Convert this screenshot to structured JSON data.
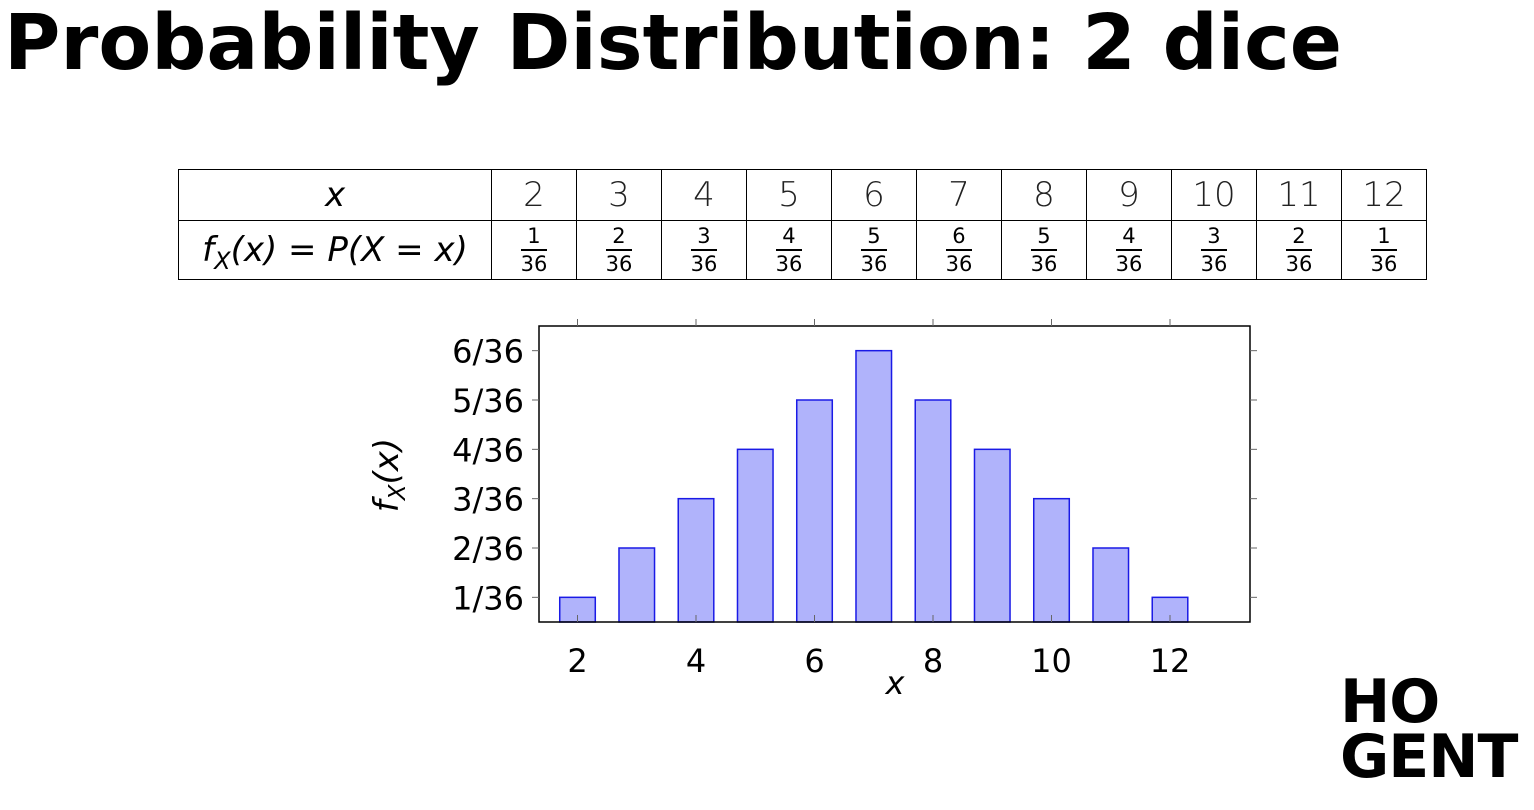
{
  "slide": {
    "title": "Probability Distribution: 2 dice"
  },
  "table": {
    "row1_header": "x",
    "row2_header": {
      "f": "f",
      "sub": "X",
      "rest": "(x) = P(X = x)"
    },
    "x_values": [
      "2",
      "3",
      "4",
      "5",
      "6",
      "7",
      "8",
      "9",
      "10",
      "11",
      "12"
    ],
    "numerators": [
      "1",
      "2",
      "3",
      "4",
      "5",
      "6",
      "5",
      "4",
      "3",
      "2",
      "1"
    ],
    "denominator": "36"
  },
  "chart_data": {
    "type": "bar",
    "title": "",
    "xlabel": "x",
    "ylabel": {
      "f": "f",
      "sub": "X",
      "rest": "(x)"
    },
    "x": [
      2,
      3,
      4,
      5,
      6,
      7,
      8,
      9,
      10,
      11,
      12
    ],
    "values": [
      1,
      2,
      3,
      4,
      5,
      6,
      5,
      4,
      3,
      2,
      1
    ],
    "value_unit_denominator": 36,
    "xlim": [
      1.35,
      13.35
    ],
    "ylim": [
      0.5,
      6.5
    ],
    "x_ticks": [
      {
        "value": 2,
        "label": "2"
      },
      {
        "value": 4,
        "label": "4"
      },
      {
        "value": 6,
        "label": "6"
      },
      {
        "value": 8,
        "label": "8"
      },
      {
        "value": 10,
        "label": "10"
      },
      {
        "value": 12,
        "label": "12"
      }
    ],
    "y_ticks": [
      {
        "value": 1,
        "label": "1/36"
      },
      {
        "value": 2,
        "label": "2/36"
      },
      {
        "value": 3,
        "label": "3/36"
      },
      {
        "value": 4,
        "label": "4/36"
      },
      {
        "value": 5,
        "label": "5/36"
      },
      {
        "value": 6,
        "label": "6/36"
      }
    ],
    "grid": false,
    "legend": "none",
    "bar_fill": "#b0b3fb",
    "bar_stroke": "#1a1ae6"
  },
  "logo": {
    "line1": "HO",
    "line2": "GENT"
  }
}
